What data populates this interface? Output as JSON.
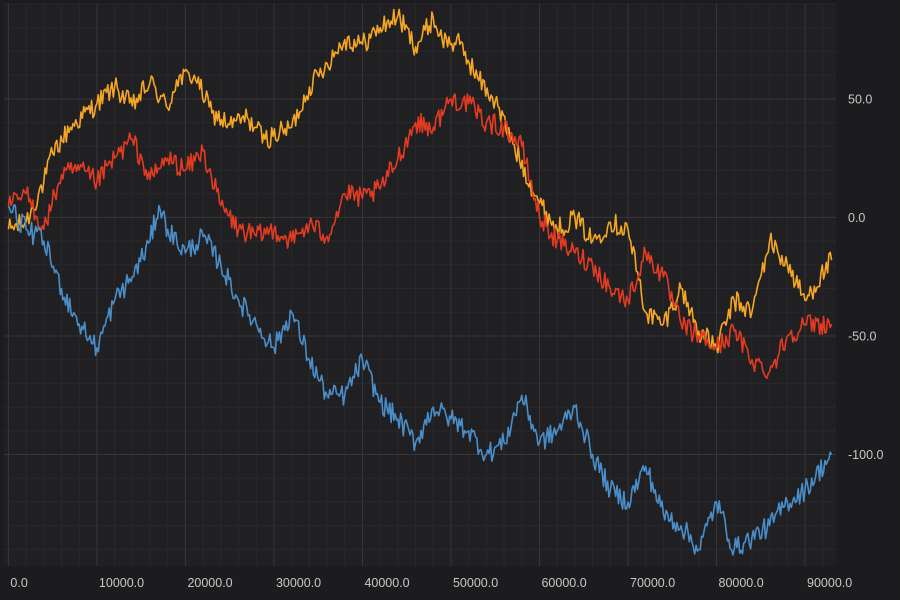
{
  "chart_data": {
    "type": "line",
    "title": "",
    "xlabel": "",
    "ylabel": "",
    "xlim": [
      -500,
      93500
    ],
    "ylim": [
      -147,
      90
    ],
    "x_ticks": [
      0,
      10000,
      20000,
      30000,
      40000,
      50000,
      60000,
      70000,
      80000,
      90000
    ],
    "x_tick_labels": [
      "0.0",
      "10000.0",
      "20000.0",
      "30000.0",
      "40000.0",
      "50000.0",
      "60000.0",
      "70000.0",
      "80000.0",
      "90000.0"
    ],
    "y_ticks": [
      50,
      0,
      -50,
      -100
    ],
    "y_tick_labels": [
      "50.0",
      "0.0",
      "-50.0",
      "-100.0"
    ],
    "y_axis_position": "right",
    "grid": true,
    "legend": "none",
    "background": "#1c1c1e",
    "plot_background": "#202023",
    "series": [
      {
        "color": "#f5a623",
        "x": [
          0,
          2000,
          4000,
          5000,
          7000,
          10000,
          12000,
          14000,
          16000,
          18000,
          19000,
          21000,
          23000,
          25000,
          27000,
          29000,
          32000,
          34000,
          36000,
          38000,
          40000,
          42000,
          44000,
          46000,
          48000,
          49000,
          51000,
          53000,
          55000,
          57000,
          60000,
          62000,
          64000,
          66000,
          68000,
          70000,
          72000,
          74000,
          76000,
          78000,
          80000,
          82000,
          84000,
          86000,
          88000,
          90000,
          93000
        ],
        "y": [
          -5,
          -2,
          15,
          27,
          38,
          48,
          55,
          47,
          57,
          46,
          58,
          60,
          44,
          39,
          42,
          33,
          38,
          55,
          65,
          75,
          73,
          80,
          85,
          72,
          84,
          75,
          73,
          59,
          49,
          31,
          6,
          -5,
          0,
          -10,
          -2,
          -5,
          -40,
          -45,
          -30,
          -48,
          -55,
          -35,
          -40,
          -10,
          -20,
          -35,
          -18
        ]
      },
      {
        "color": "#e23b22",
        "x": [
          0,
          2000,
          4000,
          6000,
          8000,
          10000,
          12000,
          14000,
          16000,
          18000,
          20000,
          22000,
          24000,
          26000,
          28000,
          30000,
          32000,
          34000,
          36000,
          38000,
          40000,
          42000,
          44000,
          46000,
          48000,
          50000,
          52000,
          54000,
          56000,
          58000,
          60000,
          62000,
          64000,
          66000,
          68000,
          70000,
          72000,
          74000,
          76000,
          78000,
          80000,
          82000,
          84000,
          86000,
          88000,
          90000,
          93000
        ],
        "y": [
          5,
          10,
          -5,
          18,
          20,
          15,
          25,
          33,
          16,
          25,
          20,
          28,
          5,
          -5,
          -8,
          -5,
          -10,
          -3,
          -8,
          10,
          8,
          12,
          25,
          40,
          38,
          50,
          48,
          40,
          38,
          30,
          0,
          -10,
          -15,
          -20,
          -30,
          -35,
          -15,
          -25,
          -45,
          -50,
          -55,
          -48,
          -60,
          -65,
          -50,
          -45,
          -45
        ]
      },
      {
        "color": "#4a8ec9",
        "x": [
          0,
          2000,
          4000,
          6000,
          8000,
          10000,
          12000,
          14000,
          16000,
          17000,
          18000,
          20000,
          22000,
          24000,
          26000,
          28000,
          30000,
          32000,
          34000,
          36000,
          38000,
          40000,
          42000,
          44000,
          46000,
          48000,
          50000,
          52000,
          54000,
          56000,
          58000,
          60000,
          62000,
          64000,
          66000,
          68000,
          70000,
          72000,
          74000,
          76000,
          78000,
          80000,
          82000,
          84000,
          86000,
          88000,
          90000,
          93000
        ],
        "y": [
          5,
          -5,
          -10,
          -30,
          -45,
          -55,
          -35,
          -25,
          -10,
          5,
          -5,
          -15,
          -8,
          -20,
          -35,
          -45,
          -55,
          -40,
          -60,
          -75,
          -75,
          -60,
          -78,
          -85,
          -95,
          -80,
          -85,
          -90,
          -100,
          -95,
          -75,
          -95,
          -90,
          -80,
          -100,
          -115,
          -120,
          -105,
          -125,
          -130,
          -140,
          -120,
          -140,
          -135,
          -130,
          -120,
          -115,
          -100
        ]
      }
    ]
  }
}
